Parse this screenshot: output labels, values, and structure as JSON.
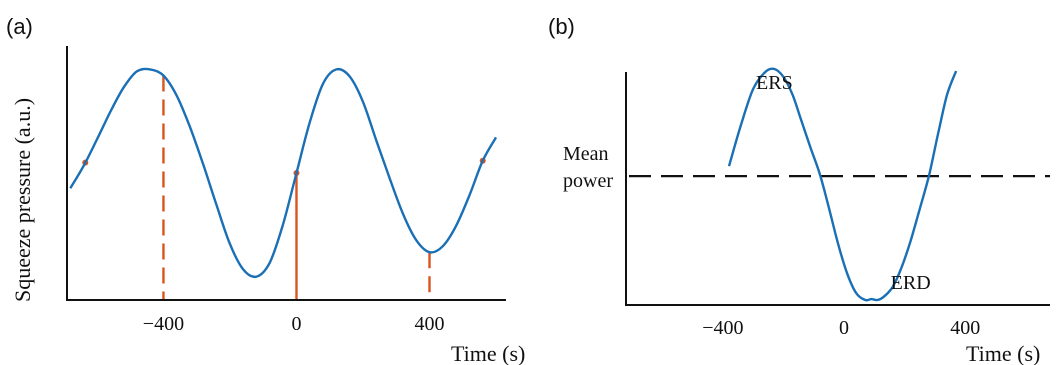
{
  "panels": {
    "a": {
      "label": "(a)"
    },
    "b": {
      "label": "(b)"
    }
  },
  "colors": {
    "curve": "#1a6fb5",
    "markers": "#d95420",
    "axis": "#111111"
  },
  "chart_data": [
    {
      "panel": "(a)",
      "type": "line",
      "title": "",
      "xlabel": "Time (s)",
      "ylabel": "Squeeze pressure (a.u.)",
      "xticks": [
        -400,
        0,
        400
      ],
      "xtick_labels": [
        "−400",
        "0",
        "400"
      ],
      "xlim": [
        -690,
        630
      ],
      "ylim": [
        -1.25,
        1.25
      ],
      "grid": false,
      "series": [
        {
          "style": "solid",
          "x": [
            -680,
            -640,
            -600,
            -560,
            -520,
            -480,
            -440,
            -400,
            -360,
            -320,
            -280,
            -240,
            -200,
            -160,
            -120,
            -80,
            -40,
            0,
            40,
            80,
            120,
            160,
            200,
            240,
            280,
            320,
            360,
            400,
            440,
            480,
            520,
            560,
            600
          ],
          "y": [
            -0.15,
            0.07,
            0.33,
            0.6,
            0.84,
            1.0,
            1.02,
            0.96,
            0.76,
            0.45,
            0.08,
            -0.32,
            -0.7,
            -0.95,
            -1.02,
            -0.88,
            -0.5,
            0.0,
            0.5,
            0.88,
            1.02,
            0.95,
            0.7,
            0.32,
            -0.05,
            -0.4,
            -0.66,
            -0.78,
            -0.72,
            -0.52,
            -0.22,
            0.12,
            0.35
          ]
        }
      ],
      "markers": [
        {
          "x": -635,
          "style": "dot"
        },
        {
          "x": -400,
          "style": "dashed"
        },
        {
          "x": 0,
          "style": "solid"
        },
        {
          "x": 400,
          "style": "dashed"
        },
        {
          "x": 560,
          "style": "dot"
        }
      ]
    },
    {
      "panel": "(b)",
      "type": "line",
      "title": "",
      "xlabel": "Time (s)",
      "ylabel": "",
      "xticks": [
        -400,
        0,
        400
      ],
      "xtick_labels": [
        "−400",
        "0",
        "400"
      ],
      "xlim": [
        -720,
        680
      ],
      "ylim": [
        -1.3,
        1.05
      ],
      "grid": false,
      "mean_power_label": "Mean power",
      "mean_power_level": 0.0,
      "annotations": [
        {
          "text": "ERS",
          "x": -230,
          "y": 0.88
        },
        {
          "text": "ERD",
          "x": 220,
          "y": -1.14
        }
      ],
      "series": [
        {
          "style": "solid",
          "x": [
            -380,
            -340,
            -300,
            -260,
            -230,
            -200,
            -170,
            -140,
            -110,
            -80,
            -50,
            -20,
            10,
            40,
            70,
            90,
            110,
            130,
            160,
            190,
            220,
            250,
            280,
            310,
            340,
            370
          ],
          "y": [
            0.1,
            0.52,
            0.88,
            1.05,
            1.08,
            1.0,
            0.82,
            0.55,
            0.28,
            0.02,
            -0.32,
            -0.68,
            -0.98,
            -1.18,
            -1.25,
            -1.24,
            -1.25,
            -1.22,
            -1.12,
            -0.92,
            -0.65,
            -0.33,
            0.0,
            0.42,
            0.82,
            1.06
          ]
        }
      ]
    }
  ]
}
